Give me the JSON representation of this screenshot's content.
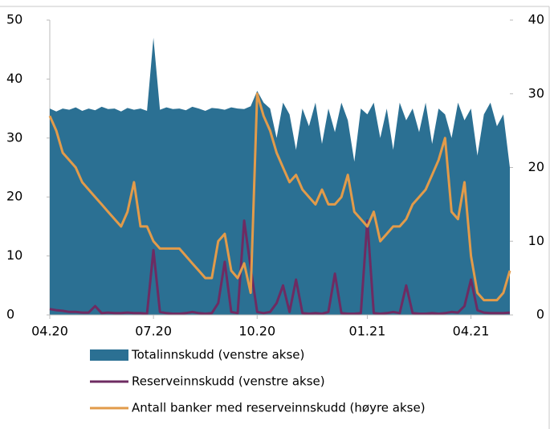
{
  "chart_data": {
    "type": "area-line",
    "categories": [
      "04.20",
      null,
      null,
      null,
      null,
      null,
      null,
      null,
      null,
      null,
      null,
      null,
      null,
      null,
      null,
      null,
      "07.20",
      null,
      null,
      null,
      null,
      null,
      null,
      null,
      null,
      null,
      null,
      null,
      null,
      null,
      null,
      null,
      "10.20",
      null,
      null,
      null,
      null,
      null,
      null,
      null,
      null,
      null,
      null,
      null,
      null,
      null,
      null,
      null,
      null,
      "01.21",
      null,
      null,
      null,
      null,
      null,
      null,
      null,
      null,
      null,
      null,
      null,
      null,
      null,
      null,
      null,
      "04.21",
      null,
      null,
      null,
      null,
      null,
      null
    ],
    "ylim": [
      0,
      50
    ],
    "yticks": [
      0,
      10,
      20,
      30,
      40,
      50
    ],
    "y2lim": [
      0,
      40
    ],
    "y2ticks": [
      0,
      10,
      20,
      30,
      40
    ],
    "series": [
      {
        "name": "Totalinnskudd (venstre akse)",
        "kind": "area",
        "color": "#2b7093",
        "values": [
          35,
          34.5,
          35,
          34.8,
          35.2,
          34.6,
          35,
          34.7,
          35.3,
          34.9,
          35,
          34.5,
          35.1,
          34.8,
          35,
          34.6,
          47,
          34.8,
          35.2,
          34.9,
          35,
          34.7,
          35.3,
          35,
          34.6,
          35.1,
          35,
          34.8,
          35.2,
          35,
          34.9,
          35.4,
          38,
          36,
          35,
          30,
          36,
          34,
          28,
          35,
          32,
          36,
          29,
          35,
          31,
          36,
          33,
          26,
          35,
          34,
          36,
          30,
          35,
          28,
          36,
          33,
          35,
          31,
          36,
          29,
          35,
          34,
          30,
          36,
          33,
          35,
          27,
          34,
          36,
          32,
          34,
          25
        ]
      },
      {
        "name": "Reserveinnskudd (venstre akse)",
        "kind": "line",
        "color": "#6e2b62",
        "values": [
          1,
          0.8,
          0.7,
          0.5,
          0.5,
          0.4,
          0.4,
          1.5,
          0.3,
          0.4,
          0.3,
          0.3,
          0.4,
          0.3,
          0.3,
          0.2,
          11,
          0.5,
          0.3,
          0.2,
          0.2,
          0.3,
          0.5,
          0.3,
          0.2,
          0.3,
          2,
          9,
          0.5,
          0.3,
          16,
          8,
          0.5,
          0.3,
          0.5,
          2,
          5,
          0.5,
          6,
          0.3,
          0.2,
          0.3,
          0.2,
          0.5,
          7,
          0.3,
          0.2,
          0.2,
          0.3,
          16,
          0.3,
          0.2,
          0.3,
          0.5,
          0.3,
          5,
          0.3,
          0.2,
          0.2,
          0.3,
          0.2,
          0.3,
          0.5,
          0.4,
          1.5,
          6,
          0.8,
          0.4,
          0.3,
          0.3,
          0.3,
          0.4
        ]
      },
      {
        "name": "Antall banker med reserveinnskudd (høyre akse)",
        "kind": "line",
        "axis": "y2",
        "color": "#e29b4a",
        "values": [
          27,
          25,
          22,
          21,
          20,
          18,
          17,
          16,
          15,
          14,
          13,
          12,
          14,
          18,
          12,
          12,
          10,
          9,
          9,
          9,
          9,
          8,
          7,
          6,
          5,
          5,
          10,
          11,
          6,
          5,
          7,
          3,
          30,
          27,
          25,
          22,
          20,
          18,
          19,
          17,
          16,
          15,
          17,
          15,
          15,
          16,
          19,
          14,
          13,
          12,
          14,
          10,
          11,
          12,
          12,
          13,
          15,
          16,
          17,
          19,
          21,
          24,
          14,
          13,
          18,
          8,
          3,
          2,
          2,
          2,
          3,
          6
        ]
      }
    ]
  }
}
